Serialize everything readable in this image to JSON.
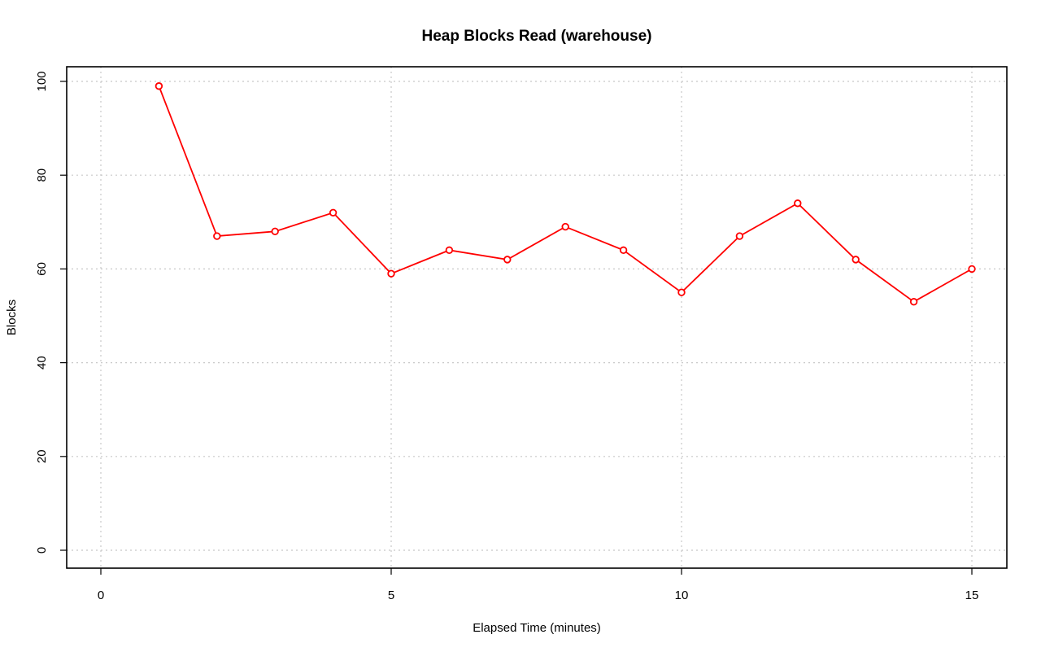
{
  "chart_data": {
    "type": "line",
    "title": "Heap Blocks Read (warehouse)",
    "xlabel": "Elapsed Time (minutes)",
    "ylabel": "Blocks",
    "xlim": [
      0,
      15
    ],
    "ylim": [
      0,
      100
    ],
    "x_ticks": [
      0,
      5,
      10,
      15
    ],
    "y_ticks": [
      0,
      20,
      40,
      60,
      80,
      100
    ],
    "x_tick_labels": [
      "0",
      "5",
      "10",
      "15"
    ],
    "y_tick_labels": [
      "0",
      "20",
      "40",
      "60",
      "80",
      "100"
    ],
    "grid": true,
    "legend": "none",
    "series": [
      {
        "color": "#ff0000",
        "marker": "open-circle",
        "x": [
          1,
          2,
          3,
          4,
          5,
          6,
          7,
          8,
          9,
          10,
          11,
          12,
          13,
          14,
          15
        ],
        "values": [
          99,
          67,
          68,
          72,
          59,
          64,
          62,
          69,
          64,
          55,
          67,
          74,
          62,
          53,
          60
        ]
      }
    ]
  }
}
